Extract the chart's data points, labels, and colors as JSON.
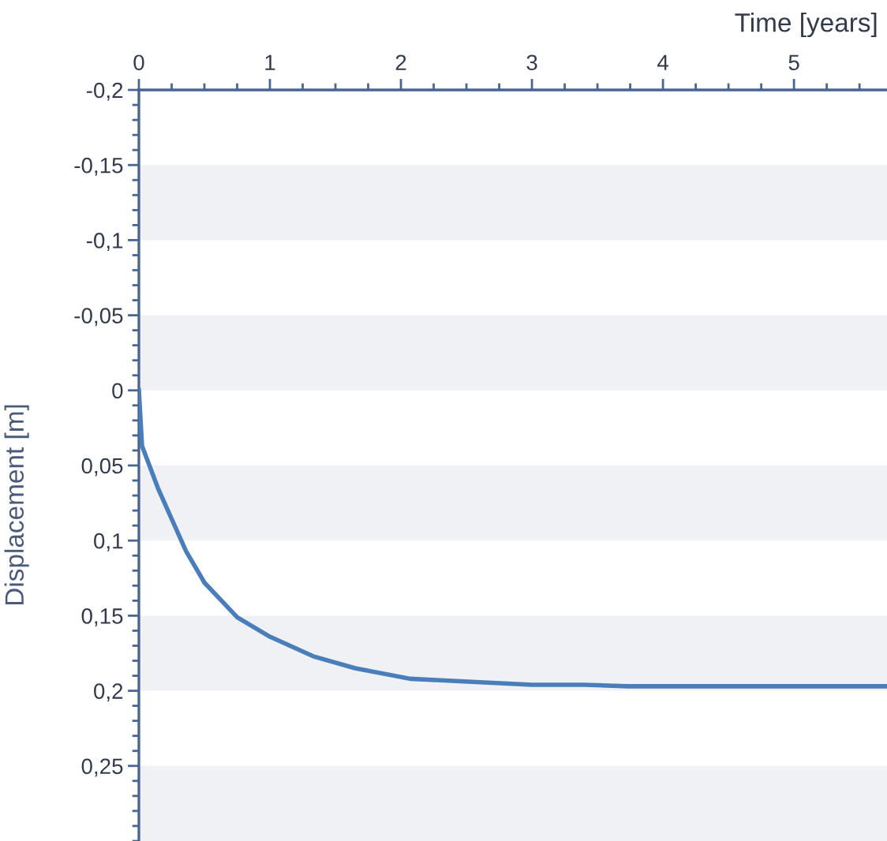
{
  "chart_data": {
    "type": "line",
    "xlabel": "Time [years]",
    "ylabel": "Displacement [m]",
    "x": [
      0,
      0.024,
      0.145,
      0.36,
      0.5,
      0.75,
      1.0,
      1.33,
      1.65,
      2.07,
      2.3,
      3.0,
      3.4,
      3.73,
      5.71
    ],
    "series": [
      {
        "color": "#4a7ebb",
        "values": [
          0,
          0.037,
          0.065,
          0.107,
          0.128,
          0.151,
          0.164,
          0.177,
          0.185,
          0.192,
          0.193,
          0.196,
          0.196,
          0.197,
          0.197
        ]
      }
    ],
    "xlim": [
      0,
      5.71
    ],
    "ylim": [
      0.3,
      -0.2
    ],
    "xticks": [
      0,
      1,
      2,
      3,
      4,
      5
    ],
    "yticks": [
      {
        "value": -0.2,
        "label": "-0,2"
      },
      {
        "value": -0.15,
        "label": "-0,15"
      },
      {
        "value": -0.1,
        "label": "-0,1"
      },
      {
        "value": -0.05,
        "label": "-0,05"
      },
      {
        "value": 0,
        "label": "0"
      },
      {
        "value": 0.05,
        "label": "0,05"
      },
      {
        "value": 0.1,
        "label": "0,1"
      },
      {
        "value": 0.15,
        "label": "0,15"
      },
      {
        "value": 0.2,
        "label": "0,2"
      },
      {
        "value": 0.25,
        "label": "0,25"
      }
    ],
    "bands": [
      {
        "axis": "y",
        "from": -0.15,
        "to": -0.1,
        "color": "#f0f1f5"
      },
      {
        "axis": "y",
        "from": -0.05,
        "to": 0,
        "color": "#f0f1f5"
      },
      {
        "axis": "y",
        "from": 0.05,
        "to": 0.1,
        "color": "#f0f1f5"
      },
      {
        "axis": "y",
        "from": 0.15,
        "to": 0.2,
        "color": "#f0f1f5"
      },
      {
        "axis": "y",
        "from": 0.25,
        "to": 0.3,
        "color": "#f0f1f5"
      }
    ],
    "grid": false,
    "legend": false,
    "marker": "none",
    "line_style": "solid"
  }
}
